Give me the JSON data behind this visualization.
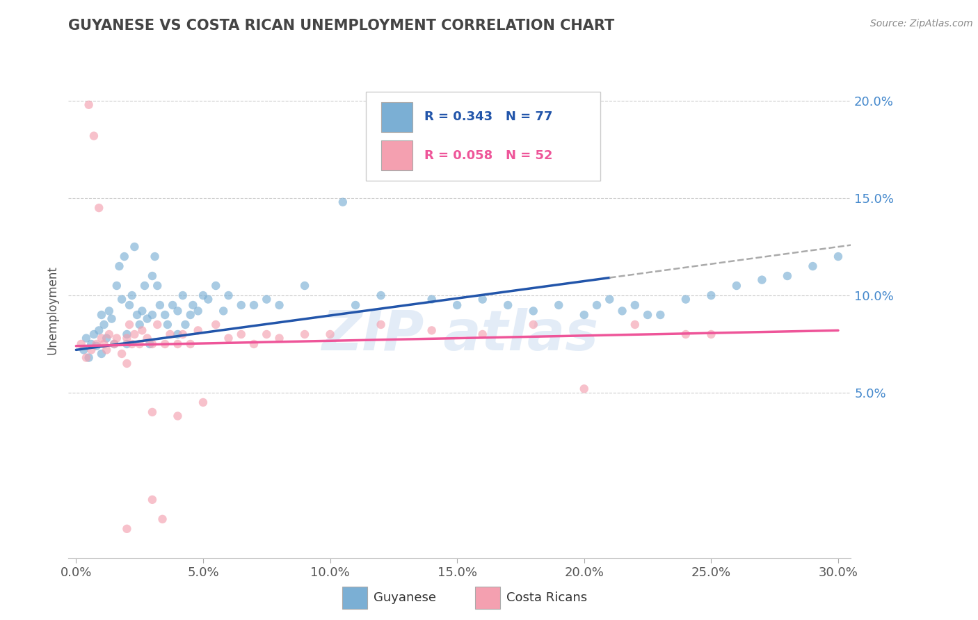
{
  "title": "GUYANESE VS COSTA RICAN UNEMPLOYMENT CORRELATION CHART",
  "source": "Source: ZipAtlas.com",
  "xlabel_ticks": [
    "0.0%",
    "5.0%",
    "10.0%",
    "15.0%",
    "20.0%",
    "25.0%",
    "30.0%"
  ],
  "xlabel_vals": [
    0.0,
    5.0,
    10.0,
    15.0,
    20.0,
    25.0,
    30.0
  ],
  "ylabel_ticks": [
    "5.0%",
    "10.0%",
    "15.0%",
    "20.0%"
  ],
  "ylabel_vals": [
    5.0,
    10.0,
    15.0,
    20.0
  ],
  "xlim": [
    -0.3,
    30.5
  ],
  "ylim": [
    -3.5,
    22.0
  ],
  "blue_R": 0.343,
  "blue_N": 77,
  "pink_R": 0.058,
  "pink_N": 52,
  "blue_color": "#7BAFD4",
  "pink_color": "#F4A0B0",
  "blue_line_color": "#2255AA",
  "pink_line_color": "#EE5599",
  "legend_blue_label": "Guyanese",
  "legend_pink_label": "Costa Ricans",
  "blue_line_x0": 0.0,
  "blue_line_y0": 7.2,
  "blue_line_x1": 30.0,
  "blue_line_y1": 12.5,
  "blue_dash_x0": 21.0,
  "blue_dash_x1": 30.5,
  "pink_line_x0": 0.0,
  "pink_line_y0": 7.4,
  "pink_line_x1": 30.0,
  "pink_line_y1": 8.2,
  "blue_points_x": [
    0.3,
    0.4,
    0.5,
    0.6,
    0.7,
    0.8,
    0.9,
    1.0,
    1.0,
    1.1,
    1.2,
    1.3,
    1.4,
    1.5,
    1.6,
    1.7,
    1.8,
    1.9,
    2.0,
    2.0,
    2.1,
    2.2,
    2.3,
    2.4,
    2.5,
    2.6,
    2.7,
    2.8,
    2.9,
    3.0,
    3.0,
    3.1,
    3.2,
    3.3,
    3.5,
    3.6,
    3.8,
    4.0,
    4.0,
    4.2,
    4.3,
    4.5,
    4.6,
    4.8,
    5.0,
    5.2,
    5.5,
    5.8,
    6.0,
    6.5,
    7.0,
    7.5,
    8.0,
    9.0,
    10.5,
    11.0,
    12.0,
    14.0,
    15.0,
    16.0,
    17.0,
    18.0,
    19.0,
    20.0,
    21.0,
    22.0,
    23.0,
    24.0,
    25.0,
    26.0,
    27.0,
    28.0,
    29.0,
    30.0,
    20.5,
    21.5,
    22.5
  ],
  "blue_points_y": [
    7.2,
    7.8,
    6.8,
    7.5,
    8.0,
    7.4,
    8.2,
    7.0,
    9.0,
    8.5,
    7.8,
    9.2,
    8.8,
    7.5,
    10.5,
    11.5,
    9.8,
    12.0,
    7.5,
    8.0,
    9.5,
    10.0,
    12.5,
    9.0,
    8.5,
    9.2,
    10.5,
    8.8,
    7.5,
    9.0,
    11.0,
    12.0,
    10.5,
    9.5,
    9.0,
    8.5,
    9.5,
    8.0,
    9.2,
    10.0,
    8.5,
    9.0,
    9.5,
    9.2,
    10.0,
    9.8,
    10.5,
    9.2,
    10.0,
    9.5,
    9.5,
    9.8,
    9.5,
    10.5,
    14.8,
    9.5,
    10.0,
    9.8,
    9.5,
    9.8,
    9.5,
    9.2,
    9.5,
    9.0,
    9.8,
    9.5,
    9.0,
    9.8,
    10.0,
    10.5,
    10.8,
    11.0,
    11.5,
    12.0,
    9.5,
    9.2,
    9.0
  ],
  "pink_points_x": [
    0.2,
    0.4,
    0.5,
    0.6,
    0.7,
    0.8,
    0.9,
    1.0,
    1.1,
    1.2,
    1.3,
    1.5,
    1.6,
    1.8,
    2.0,
    2.0,
    2.1,
    2.2,
    2.3,
    2.5,
    2.6,
    2.8,
    3.0,
    3.0,
    3.2,
    3.4,
    3.5,
    3.7,
    4.0,
    4.2,
    4.5,
    4.8,
    5.0,
    5.5,
    6.0,
    6.5,
    7.0,
    7.5,
    8.0,
    9.0,
    10.0,
    12.0,
    14.0,
    16.0,
    18.0,
    20.0,
    22.0,
    24.0,
    25.0,
    3.0,
    2.0,
    4.0
  ],
  "pink_points_y": [
    7.5,
    6.8,
    19.8,
    7.2,
    18.2,
    7.5,
    14.5,
    7.8,
    7.5,
    7.2,
    8.0,
    7.5,
    7.8,
    7.0,
    7.8,
    6.5,
    8.5,
    7.5,
    8.0,
    7.5,
    8.2,
    7.8,
    7.5,
    -0.5,
    8.5,
    -1.5,
    7.5,
    8.0,
    7.5,
    8.0,
    7.5,
    8.2,
    4.5,
    8.5,
    7.8,
    8.0,
    7.5,
    8.0,
    7.8,
    8.0,
    8.0,
    8.5,
    8.2,
    8.0,
    8.5,
    5.2,
    8.5,
    8.0,
    8.0,
    4.0,
    -2.0,
    3.8
  ]
}
